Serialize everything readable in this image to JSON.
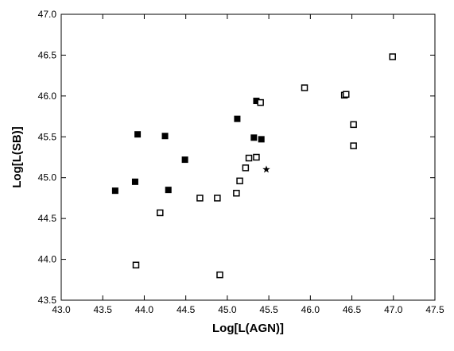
{
  "chart_data": {
    "type": "scatter",
    "x_label": "Log[L(AGN)]",
    "y_label": "Log[L(SB)]",
    "xlim": [
      43.0,
      47.5
    ],
    "ylim": [
      43.5,
      47.0
    ],
    "xticks": [
      {
        "value": 43.0,
        "label": "43.0"
      },
      {
        "value": 43.5,
        "label": "43.5"
      },
      {
        "value": 44.0,
        "label": "44.0"
      },
      {
        "value": 44.5,
        "label": "44.5"
      },
      {
        "value": 45.0,
        "label": "45.0"
      },
      {
        "value": 45.5,
        "label": "45.5"
      },
      {
        "value": 46.0,
        "label": "46.0"
      },
      {
        "value": 46.5,
        "label": "46.5"
      },
      {
        "value": 47.0,
        "label": "47.0"
      },
      {
        "value": 47.5,
        "label": "47.5"
      }
    ],
    "yticks": [
      {
        "value": 43.5,
        "label": "43.5"
      },
      {
        "value": 44.0,
        "label": "44.0"
      },
      {
        "value": 44.5,
        "label": "44.5"
      },
      {
        "value": 45.0,
        "label": "45.0"
      },
      {
        "value": 45.5,
        "label": "45.5"
      },
      {
        "value": 46.0,
        "label": "46.0"
      },
      {
        "value": 46.5,
        "label": "46.5"
      },
      {
        "value": 47.0,
        "label": "47.0"
      }
    ],
    "series": [
      {
        "marker": "filled-square",
        "color": "#000000",
        "x": [
          43.65,
          43.89,
          43.92,
          44.25,
          44.29,
          44.49,
          45.12,
          45.35,
          45.32,
          45.41
        ],
        "values": [
          44.84,
          44.95,
          45.53,
          45.51,
          44.85,
          45.22,
          45.72,
          45.94,
          45.49,
          45.47
        ]
      },
      {
        "marker": "open-square",
        "color": "#000000",
        "x": [
          43.9,
          44.19,
          44.67,
          44.88,
          44.91,
          45.11,
          45.15,
          45.22,
          45.26,
          45.35,
          45.4,
          45.93,
          46.41,
          46.43,
          46.52,
          46.52,
          46.99
        ],
        "values": [
          43.93,
          44.57,
          44.75,
          44.75,
          43.81,
          44.81,
          44.96,
          45.12,
          45.24,
          45.25,
          45.92,
          46.1,
          46.01,
          46.02,
          45.65,
          45.39,
          46.48
        ]
      },
      {
        "marker": "star",
        "color": "#000000",
        "x": [
          45.47
        ],
        "values": [
          45.1
        ]
      }
    ]
  }
}
